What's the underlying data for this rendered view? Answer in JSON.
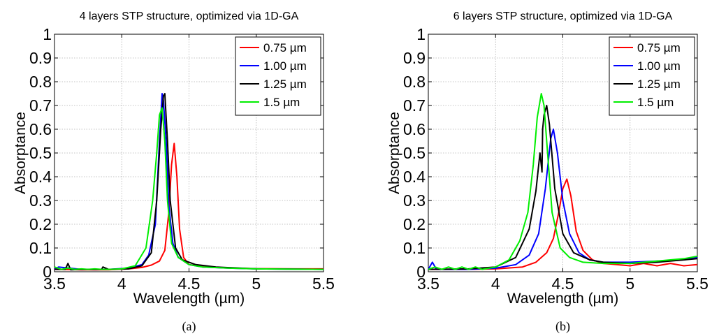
{
  "chart_data": [
    {
      "type": "line",
      "title": "4 layers STP structure, optimized via 1D-GA",
      "xlabel": "Wavelength (µm)",
      "ylabel": "Absorptance",
      "xlim": [
        3.5,
        5.5
      ],
      "ylim": [
        0,
        1
      ],
      "xticks": [
        "3.5",
        "4",
        "4.5",
        "5",
        "5.5"
      ],
      "yticks": [
        "0",
        "0.1",
        "0.2",
        "0.3",
        "0.4",
        "0.5",
        "0.6",
        "0.7",
        "0.8",
        "0.9",
        "1"
      ],
      "grid": true,
      "legend_position": "top-right",
      "caption": "(a)",
      "series": [
        {
          "name": "0.75 µm",
          "color": "#ff0000",
          "x": [
            3.5,
            3.7,
            3.9,
            4.05,
            4.15,
            4.22,
            4.28,
            4.32,
            4.35,
            4.37,
            4.39,
            4.41,
            4.43,
            4.46,
            4.5,
            4.6,
            4.8,
            5.0,
            5.3,
            5.5
          ],
          "y": [
            0.01,
            0.008,
            0.008,
            0.012,
            0.018,
            0.028,
            0.045,
            0.09,
            0.25,
            0.45,
            0.54,
            0.4,
            0.18,
            0.06,
            0.03,
            0.022,
            0.016,
            0.013,
            0.012,
            0.012
          ]
        },
        {
          "name": "1.00 µm",
          "color": "#0000ff",
          "x": [
            3.5,
            3.53,
            3.7,
            3.9,
            4.05,
            4.15,
            4.2,
            4.25,
            4.28,
            4.3,
            4.31,
            4.33,
            4.35,
            4.38,
            4.42,
            4.5,
            4.6,
            4.8,
            5.0,
            5.5
          ],
          "y": [
            0.01,
            0.02,
            0.01,
            0.01,
            0.015,
            0.03,
            0.07,
            0.2,
            0.55,
            0.75,
            0.72,
            0.55,
            0.28,
            0.12,
            0.06,
            0.03,
            0.02,
            0.015,
            0.012,
            0.01
          ]
        },
        {
          "name": "1.25 µm",
          "color": "#000000",
          "x": [
            3.5,
            3.58,
            3.6,
            3.62,
            3.7,
            3.85,
            3.86,
            3.9,
            4.05,
            4.15,
            4.22,
            4.26,
            4.29,
            4.31,
            4.32,
            4.34,
            4.36,
            4.4,
            4.45,
            4.55,
            4.7,
            5.0,
            5.5
          ],
          "y": [
            0.01,
            0.01,
            0.035,
            0.008,
            0.01,
            0.01,
            0.02,
            0.01,
            0.012,
            0.025,
            0.08,
            0.3,
            0.6,
            0.74,
            0.75,
            0.55,
            0.3,
            0.1,
            0.05,
            0.03,
            0.02,
            0.012,
            0.01
          ]
        },
        {
          "name": "1.5 µm",
          "color": "#00ee00",
          "x": [
            3.5,
            3.55,
            3.6,
            3.65,
            3.7,
            3.75,
            3.8,
            3.85,
            3.9,
            4.0,
            4.1,
            4.18,
            4.23,
            4.26,
            4.28,
            4.3,
            4.32,
            4.34,
            4.37,
            4.42,
            4.5,
            4.6,
            4.8,
            5.0,
            5.5
          ],
          "y": [
            0.02,
            0.01,
            0.015,
            0.01,
            0.012,
            0.01,
            0.012,
            0.01,
            0.01,
            0.012,
            0.025,
            0.1,
            0.3,
            0.5,
            0.66,
            0.69,
            0.55,
            0.3,
            0.12,
            0.06,
            0.03,
            0.02,
            0.015,
            0.012,
            0.01
          ]
        }
      ]
    },
    {
      "type": "line",
      "title": "6 layers STP structure, optimized via 1D-GA",
      "xlabel": "Wavelength (µm)",
      "ylabel": "Absorptance",
      "xlim": [
        3.5,
        5.5
      ],
      "ylim": [
        0,
        1
      ],
      "xticks": [
        "3.5",
        "4",
        "4.5",
        "5",
        "5.5"
      ],
      "yticks": [
        "0",
        "0.1",
        "0.2",
        "0.3",
        "0.4",
        "0.5",
        "0.6",
        "0.7",
        "0.8",
        "0.9",
        "1"
      ],
      "grid": true,
      "legend_position": "top-right",
      "caption": "(b)",
      "series": [
        {
          "name": "0.75 µm",
          "color": "#ff0000",
          "x": [
            3.5,
            3.8,
            4.0,
            4.2,
            4.3,
            4.38,
            4.43,
            4.47,
            4.5,
            4.53,
            4.56,
            4.6,
            4.65,
            4.72,
            4.8,
            4.9,
            5.0,
            5.1,
            5.2,
            5.3,
            5.4,
            5.5
          ],
          "y": [
            0.01,
            0.01,
            0.012,
            0.02,
            0.04,
            0.08,
            0.14,
            0.25,
            0.35,
            0.39,
            0.32,
            0.17,
            0.09,
            0.05,
            0.035,
            0.03,
            0.025,
            0.035,
            0.025,
            0.035,
            0.025,
            0.03
          ]
        },
        {
          "name": "1.00 µm",
          "color": "#0000ff",
          "x": [
            3.5,
            3.53,
            3.56,
            3.6,
            3.8,
            4.0,
            4.15,
            4.25,
            4.32,
            4.37,
            4.41,
            4.43,
            4.46,
            4.5,
            4.55,
            4.62,
            4.7,
            4.8,
            5.0,
            5.2,
            5.4,
            5.5
          ],
          "y": [
            0.01,
            0.04,
            0.01,
            0.01,
            0.01,
            0.015,
            0.03,
            0.07,
            0.16,
            0.35,
            0.56,
            0.6,
            0.5,
            0.3,
            0.16,
            0.08,
            0.05,
            0.04,
            0.04,
            0.045,
            0.05,
            0.06
          ]
        },
        {
          "name": "1.25 µm",
          "color": "#000000",
          "x": [
            3.5,
            3.8,
            4.0,
            4.15,
            4.25,
            4.3,
            4.33,
            4.345,
            4.35,
            4.36,
            4.38,
            4.4,
            4.44,
            4.5,
            4.58,
            4.7,
            4.8,
            5.0,
            5.2,
            5.4,
            5.5
          ],
          "y": [
            0.01,
            0.012,
            0.02,
            0.06,
            0.18,
            0.34,
            0.5,
            0.42,
            0.6,
            0.66,
            0.7,
            0.62,
            0.35,
            0.16,
            0.08,
            0.05,
            0.04,
            0.035,
            0.04,
            0.05,
            0.055
          ]
        },
        {
          "name": "1.5 µm",
          "color": "#00ee00",
          "x": [
            3.5,
            3.55,
            3.6,
            3.65,
            3.7,
            3.75,
            3.8,
            3.85,
            3.9,
            4.0,
            4.1,
            4.18,
            4.24,
            4.28,
            4.31,
            4.34,
            4.36,
            4.38,
            4.42,
            4.48,
            4.55,
            4.65,
            4.8,
            5.0,
            5.2,
            5.4,
            5.5
          ],
          "y": [
            0.01,
            0.02,
            0.01,
            0.02,
            0.01,
            0.02,
            0.01,
            0.02,
            0.01,
            0.02,
            0.05,
            0.13,
            0.25,
            0.45,
            0.65,
            0.75,
            0.7,
            0.55,
            0.25,
            0.1,
            0.06,
            0.04,
            0.035,
            0.035,
            0.045,
            0.055,
            0.065
          ]
        }
      ]
    }
  ]
}
